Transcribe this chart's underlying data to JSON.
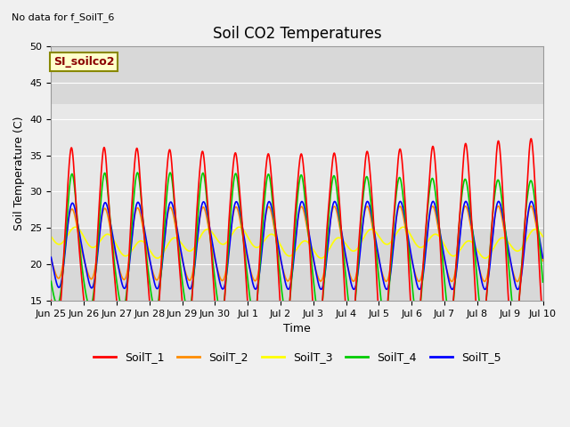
{
  "title": "Soil CO2 Temperatures",
  "xlabel": "Time",
  "ylabel": "Soil Temperature (C)",
  "top_left_text": "No data for f_SoilT_6",
  "annotation_text": "SI_soilco2",
  "ylim": [
    15,
    50
  ],
  "xlim": [
    0,
    15
  ],
  "fig_bg_color": "#f0f0f0",
  "plot_bg_color": "#d8d8d8",
  "shaded_band_color": "#e8e8e8",
  "shaded_band": [
    25,
    42
  ],
  "line_colors": {
    "SoilT_1": "#ff0000",
    "SoilT_2": "#ff8c00",
    "SoilT_3": "#ffff00",
    "SoilT_4": "#00cc00",
    "SoilT_5": "#0000ff"
  },
  "legend_labels": [
    "SoilT_1",
    "SoilT_2",
    "SoilT_3",
    "SoilT_4",
    "SoilT_5"
  ],
  "xtick_labels": [
    "Jun 25",
    "Jun 26",
    "Jun 27",
    "Jun 28",
    "Jun 29",
    "Jun 30",
    "Jul 1",
    "Jul 2",
    "Jul 3",
    "Jul 4",
    "Jul 5",
    "Jul 6",
    "Jul 7",
    "Jul 8",
    "Jul 9",
    "Jul 10"
  ],
  "xtick_positions": [
    0,
    1,
    2,
    3,
    4,
    5,
    6,
    7,
    8,
    9,
    10,
    11,
    12,
    13,
    14,
    15
  ],
  "ytick_positions": [
    15,
    20,
    25,
    30,
    35,
    40,
    45,
    50
  ],
  "grid_color": "#bbbbbb",
  "line_width": 1.2,
  "title_fontsize": 12,
  "axis_label_fontsize": 9,
  "tick_fontsize": 8,
  "legend_fontsize": 9
}
